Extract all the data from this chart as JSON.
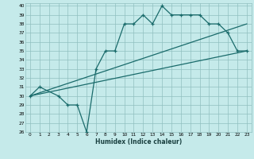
{
  "xlabel": "Humidex (Indice chaleur)",
  "bg_color": "#c5eaea",
  "line_color": "#1a6b6b",
  "grid_color": "#90c0c0",
  "xlim": [
    -0.5,
    23.5
  ],
  "ylim": [
    26,
    40.3
  ],
  "xticks": [
    0,
    1,
    2,
    3,
    4,
    5,
    6,
    7,
    8,
    9,
    10,
    11,
    12,
    13,
    14,
    15,
    16,
    17,
    18,
    19,
    20,
    21,
    22,
    23
  ],
  "yticks": [
    26,
    27,
    28,
    29,
    30,
    31,
    32,
    33,
    34,
    35,
    36,
    37,
    38,
    39,
    40
  ],
  "line1_x": [
    0,
    1,
    3,
    4,
    5,
    6,
    7,
    8,
    9,
    10,
    11,
    12,
    13,
    14,
    15,
    16,
    17,
    18,
    19,
    20,
    21,
    22,
    23
  ],
  "line1_y": [
    30,
    31,
    30,
    29,
    29,
    26,
    33,
    35,
    35,
    38,
    38,
    39,
    38,
    40,
    39,
    39,
    39,
    39,
    38,
    38,
    37,
    35,
    35
  ],
  "line2_x": [
    0,
    23
  ],
  "line2_y": [
    30,
    35
  ],
  "line3_x": [
    0,
    23
  ],
  "line3_y": [
    30,
    38
  ]
}
